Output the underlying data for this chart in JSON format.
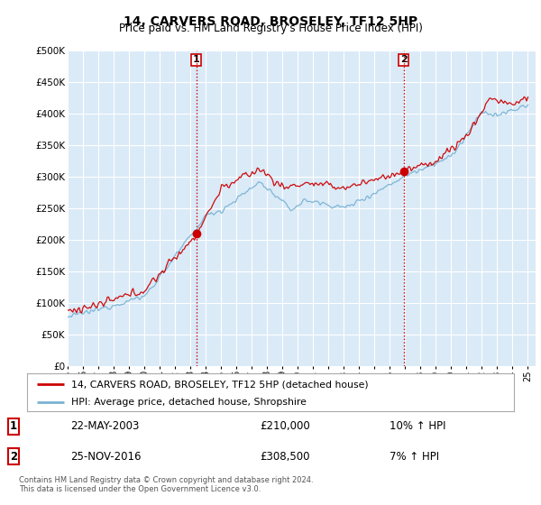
{
  "title": "14, CARVERS ROAD, BROSELEY, TF12 5HP",
  "subtitle": "Price paid vs. HM Land Registry's House Price Index (HPI)",
  "ylabel_ticks": [
    "£0",
    "£50K",
    "£100K",
    "£150K",
    "£200K",
    "£250K",
    "£300K",
    "£350K",
    "£400K",
    "£450K",
    "£500K"
  ],
  "ytick_vals": [
    0,
    50000,
    100000,
    150000,
    200000,
    250000,
    300000,
    350000,
    400000,
    450000,
    500000
  ],
  "ylim": [
    0,
    500000
  ],
  "transaction1_date": 2003.38,
  "transaction1_price": 210000,
  "transaction2_date": 2016.9,
  "transaction2_price": 308500,
  "hpi_color": "#7ab3d4",
  "price_color": "#cc0000",
  "plot_bg": "#daeaf7",
  "grid_color": "#c8d8e8",
  "legend1_text": "14, CARVERS ROAD, BROSELEY, TF12 5HP (detached house)",
  "legend2_text": "HPI: Average price, detached house, Shropshire",
  "annotation1_date": "22-MAY-2003",
  "annotation1_price": "£210,000",
  "annotation1_hpi": "10% ↑ HPI",
  "annotation2_date": "25-NOV-2016",
  "annotation2_price": "£308,500",
  "annotation2_hpi": "7% ↑ HPI",
  "footer": "Contains HM Land Registry data © Crown copyright and database right 2024.\nThis data is licensed under the Open Government Licence v3.0.",
  "vline_color": "#cc0000"
}
